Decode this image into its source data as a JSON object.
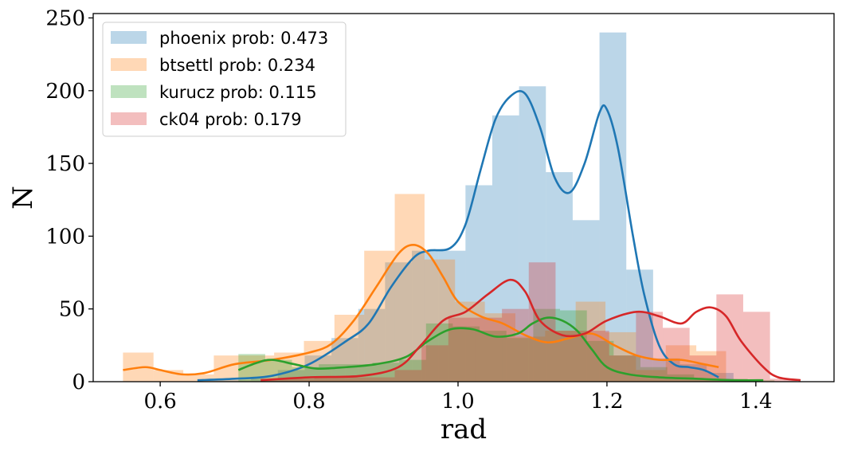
{
  "chart_data": {
    "type": "bar",
    "xlabel": "rad",
    "ylabel": "N",
    "xlim": [
      0.51,
      1.505
    ],
    "ylim": [
      0,
      253
    ],
    "xticks": [
      0.6,
      0.8,
      1.0,
      1.2,
      1.4
    ],
    "xtick_labels": [
      "0.6",
      "0.8",
      "1.0",
      "1.2",
      "1.4"
    ],
    "yticks": [
      0,
      50,
      100,
      150,
      200,
      250
    ],
    "ytick_labels": [
      "0",
      "50",
      "100",
      "150",
      "200",
      "250"
    ],
    "grid": false,
    "legend_position": "top-left",
    "series": [
      {
        "name": "phoenix prob: 0.473",
        "color": "#1f77b4",
        "hist_alpha": 0.3,
        "bin_edges": [
          0.65,
          0.686,
          0.722,
          0.758,
          0.794,
          0.83,
          0.866,
          0.902,
          0.938,
          0.974,
          1.01,
          1.046,
          1.082,
          1.118,
          1.154,
          1.19,
          1.226,
          1.262,
          1.298,
          1.334,
          1.37
        ],
        "counts": [
          1,
          1,
          2,
          8,
          18,
          30,
          50,
          82,
          90,
          90,
          135,
          183,
          203,
          144,
          111,
          240,
          77,
          16,
          12,
          6
        ],
        "kde": [
          [
            0.65,
            1
          ],
          [
            0.7,
            2
          ],
          [
            0.75,
            4
          ],
          [
            0.8,
            12
          ],
          [
            0.85,
            28
          ],
          [
            0.88,
            40
          ],
          [
            0.91,
            65
          ],
          [
            0.94,
            85
          ],
          [
            0.96,
            90
          ],
          [
            0.99,
            92
          ],
          [
            1.01,
            108
          ],
          [
            1.03,
            145
          ],
          [
            1.05,
            180
          ],
          [
            1.07,
            196
          ],
          [
            1.09,
            198
          ],
          [
            1.11,
            175
          ],
          [
            1.13,
            140
          ],
          [
            1.15,
            130
          ],
          [
            1.17,
            150
          ],
          [
            1.19,
            185
          ],
          [
            1.2,
            187
          ],
          [
            1.215,
            160
          ],
          [
            1.235,
            100
          ],
          [
            1.25,
            60
          ],
          [
            1.27,
            25
          ],
          [
            1.29,
            12
          ],
          [
            1.31,
            10
          ],
          [
            1.33,
            8
          ],
          [
            1.35,
            3
          ]
        ]
      },
      {
        "name": "btsettl prob: 0.234",
        "color": "#ff7f0e",
        "hist_alpha": 0.3,
        "bin_edges": [
          0.55,
          0.591,
          0.631,
          0.672,
          0.712,
          0.753,
          0.793,
          0.834,
          0.874,
          0.915,
          0.955,
          0.996,
          1.036,
          1.077,
          1.117,
          1.158,
          1.198,
          1.239,
          1.279,
          1.32,
          1.36
        ],
        "counts": [
          20,
          8,
          5,
          18,
          18,
          20,
          28,
          46,
          90,
          129,
          84,
          55,
          47,
          31,
          35,
          55,
          34,
          8,
          25,
          21
        ],
        "kde": [
          [
            0.55,
            8
          ],
          [
            0.58,
            10
          ],
          [
            0.6,
            8
          ],
          [
            0.63,
            5
          ],
          [
            0.66,
            6
          ],
          [
            0.7,
            12
          ],
          [
            0.75,
            15
          ],
          [
            0.8,
            20
          ],
          [
            0.83,
            26
          ],
          [
            0.86,
            42
          ],
          [
            0.89,
            65
          ],
          [
            0.92,
            88
          ],
          [
            0.94,
            94
          ],
          [
            0.96,
            88
          ],
          [
            0.98,
            72
          ],
          [
            1.0,
            55
          ],
          [
            1.03,
            45
          ],
          [
            1.06,
            40
          ],
          [
            1.09,
            32
          ],
          [
            1.12,
            27
          ],
          [
            1.15,
            30
          ],
          [
            1.18,
            33
          ],
          [
            1.21,
            25
          ],
          [
            1.24,
            18
          ],
          [
            1.27,
            15
          ],
          [
            1.3,
            15
          ],
          [
            1.33,
            12
          ],
          [
            1.35,
            10
          ]
        ]
      },
      {
        "name": "kurucz prob: 0.115",
        "color": "#2ca02c",
        "hist_alpha": 0.3,
        "bin_edges": [
          0.705,
          0.741,
          0.777,
          0.813,
          0.849,
          0.885,
          0.921,
          0.957,
          0.993,
          1.029,
          1.065,
          1.101,
          1.137,
          1.173,
          1.209,
          1.245,
          1.281,
          1.317,
          1.353,
          1.389,
          1.425
        ],
        "counts": [
          19,
          15,
          10,
          12,
          12,
          13,
          15,
          40,
          38,
          35,
          30,
          50,
          49,
          28,
          18,
          10,
          5,
          2,
          2,
          1
        ],
        "kde": [
          [
            0.705,
            8
          ],
          [
            0.73,
            13
          ],
          [
            0.75,
            15
          ],
          [
            0.78,
            12
          ],
          [
            0.81,
            9
          ],
          [
            0.85,
            10
          ],
          [
            0.89,
            12
          ],
          [
            0.93,
            17
          ],
          [
            0.96,
            28
          ],
          [
            0.99,
            36
          ],
          [
            1.02,
            36
          ],
          [
            1.05,
            31
          ],
          [
            1.08,
            33
          ],
          [
            1.1,
            40
          ],
          [
            1.12,
            44
          ],
          [
            1.14,
            42
          ],
          [
            1.16,
            35
          ],
          [
            1.18,
            22
          ],
          [
            1.2,
            10
          ],
          [
            1.23,
            5
          ],
          [
            1.27,
            3
          ],
          [
            1.32,
            2
          ],
          [
            1.37,
            1
          ],
          [
            1.41,
            1
          ]
        ]
      },
      {
        "name": "ck04 prob: 0.179",
        "color": "#d62728",
        "hist_alpha": 0.3,
        "bin_edges": [
          0.735,
          0.771,
          0.807,
          0.843,
          0.879,
          0.915,
          0.951,
          0.987,
          1.023,
          1.059,
          1.095,
          1.131,
          1.167,
          1.203,
          1.239,
          1.275,
          1.311,
          1.347,
          1.383,
          1.419,
          1.455
        ],
        "counts": [
          2,
          2,
          3,
          3,
          3,
          8,
          25,
          44,
          44,
          50,
          82,
          35,
          35,
          18,
          48,
          37,
          18,
          60,
          48,
          2
        ],
        "kde": [
          [
            0.735,
            1
          ],
          [
            0.8,
            3
          ],
          [
            0.87,
            4
          ],
          [
            0.92,
            10
          ],
          [
            0.95,
            25
          ],
          [
            0.98,
            42
          ],
          [
            1.01,
            48
          ],
          [
            1.04,
            60
          ],
          [
            1.07,
            70
          ],
          [
            1.09,
            62
          ],
          [
            1.11,
            42
          ],
          [
            1.14,
            32
          ],
          [
            1.17,
            33
          ],
          [
            1.2,
            42
          ],
          [
            1.24,
            48
          ],
          [
            1.27,
            45
          ],
          [
            1.3,
            40
          ],
          [
            1.32,
            48
          ],
          [
            1.34,
            51
          ],
          [
            1.36,
            45
          ],
          [
            1.38,
            28
          ],
          [
            1.41,
            10
          ],
          [
            1.43,
            3
          ],
          [
            1.46,
            1
          ]
        ]
      }
    ]
  }
}
